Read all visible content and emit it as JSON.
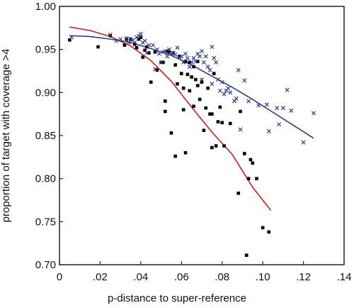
{
  "chart_data": {
    "type": "scatter",
    "title": "",
    "xlabel": "p-distance to super-reference",
    "ylabel": "proportion of target with coverage >4",
    "xlim": [
      0,
      0.14
    ],
    "ylim": [
      0.7,
      1.0
    ],
    "x_ticks": [
      {
        "value": 0,
        "label": "0"
      },
      {
        "value": 0.02,
        "label": ".02"
      },
      {
        "value": 0.04,
        "label": ".04"
      },
      {
        "value": 0.06,
        "label": ".06"
      },
      {
        "value": 0.08,
        "label": ".08"
      },
      {
        "value": 0.1,
        "label": ".10"
      },
      {
        "value": 0.12,
        "label": ".12"
      },
      {
        "value": 0.14,
        "label": ".14"
      }
    ],
    "y_ticks": [
      {
        "value": 0.7,
        "label": "0.70"
      },
      {
        "value": 0.75,
        "label": "0.75"
      },
      {
        "value": 0.8,
        "label": "0.80"
      },
      {
        "value": 0.85,
        "label": "0.85"
      },
      {
        "value": 0.9,
        "label": "0.90"
      },
      {
        "value": 0.95,
        "label": "0.95"
      },
      {
        "value": 1.0,
        "label": "1.00"
      }
    ],
    "grid": false,
    "legend": "none",
    "series": [
      {
        "marker": "square",
        "color": "#000000",
        "points": [
          [
            0.005,
            0.961
          ],
          [
            0.019,
            0.953
          ],
          [
            0.025,
            0.966
          ],
          [
            0.032,
            0.955
          ],
          [
            0.033,
            0.962
          ],
          [
            0.035,
            0.962
          ],
          [
            0.037,
            0.956
          ],
          [
            0.038,
            0.952
          ],
          [
            0.039,
            0.962
          ],
          [
            0.04,
            0.964
          ],
          [
            0.041,
            0.941
          ],
          [
            0.042,
            0.949
          ],
          [
            0.043,
            0.953
          ],
          [
            0.044,
            0.946
          ],
          [
            0.045,
            0.912
          ],
          [
            0.047,
            0.947
          ],
          [
            0.048,
            0.926
          ],
          [
            0.05,
            0.935
          ],
          [
            0.051,
            0.935
          ],
          [
            0.052,
            0.89
          ],
          [
            0.052,
            0.878
          ],
          [
            0.053,
            0.948
          ],
          [
            0.054,
            0.947
          ],
          [
            0.055,
            0.853
          ],
          [
            0.056,
            0.946
          ],
          [
            0.057,
            0.932
          ],
          [
            0.057,
            0.826
          ],
          [
            0.058,
            0.91
          ],
          [
            0.059,
            0.942
          ],
          [
            0.06,
            0.922
          ],
          [
            0.061,
            0.905
          ],
          [
            0.061,
            0.88
          ],
          [
            0.062,
            0.936
          ],
          [
            0.062,
            0.83
          ],
          [
            0.063,
            0.921
          ],
          [
            0.064,
            0.935
          ],
          [
            0.064,
            0.902
          ],
          [
            0.065,
            0.918
          ],
          [
            0.066,
            0.93
          ],
          [
            0.066,
            0.884
          ],
          [
            0.067,
            0.915
          ],
          [
            0.068,
            0.936
          ],
          [
            0.068,
            0.908
          ],
          [
            0.069,
            0.892
          ],
          [
            0.07,
            0.912
          ],
          [
            0.071,
            0.856
          ],
          [
            0.072,
            0.882
          ],
          [
            0.073,
            0.905
          ],
          [
            0.074,
            0.875
          ],
          [
            0.075,
            0.836
          ],
          [
            0.075,
            0.875
          ],
          [
            0.076,
            0.922
          ],
          [
            0.077,
            0.838
          ],
          [
            0.078,
            0.866
          ],
          [
            0.079,
            0.883
          ],
          [
            0.08,
            0.865
          ],
          [
            0.081,
            0.838
          ],
          [
            0.084,
            0.864
          ],
          [
            0.088,
            0.783
          ],
          [
            0.089,
            0.878
          ],
          [
            0.091,
            0.829
          ],
          [
            0.092,
            0.711
          ],
          [
            0.093,
            0.8
          ],
          [
            0.094,
            0.822
          ],
          [
            0.095,
            0.818
          ],
          [
            0.097,
            0.8
          ],
          [
            0.1,
            0.743
          ],
          [
            0.103,
            0.738
          ]
        ]
      },
      {
        "marker": "cross",
        "color": "#2c3a8c",
        "points": [
          [
            0.006,
            0.964
          ],
          [
            0.025,
            0.967
          ],
          [
            0.028,
            0.96
          ],
          [
            0.03,
            0.962
          ],
          [
            0.033,
            0.963
          ],
          [
            0.034,
            0.958
          ],
          [
            0.035,
            0.962
          ],
          [
            0.036,
            0.961
          ],
          [
            0.037,
            0.958
          ],
          [
            0.038,
            0.964
          ],
          [
            0.039,
            0.966
          ],
          [
            0.04,
            0.968
          ],
          [
            0.041,
            0.958
          ],
          [
            0.042,
            0.96
          ],
          [
            0.043,
            0.946
          ],
          [
            0.044,
            0.955
          ],
          [
            0.046,
            0.955
          ],
          [
            0.047,
            0.927
          ],
          [
            0.048,
            0.95
          ],
          [
            0.049,
            0.945
          ],
          [
            0.05,
            0.935
          ],
          [
            0.051,
            0.947
          ],
          [
            0.052,
            0.948
          ],
          [
            0.053,
            0.942
          ],
          [
            0.054,
            0.95
          ],
          [
            0.055,
            0.945
          ],
          [
            0.056,
            0.946
          ],
          [
            0.057,
            0.944
          ],
          [
            0.058,
            0.952
          ],
          [
            0.059,
            0.941
          ],
          [
            0.06,
            0.942
          ],
          [
            0.061,
            0.935
          ],
          [
            0.062,
            0.945
          ],
          [
            0.063,
            0.94
          ],
          [
            0.064,
            0.93
          ],
          [
            0.065,
            0.935
          ],
          [
            0.066,
            0.94
          ],
          [
            0.067,
            0.936
          ],
          [
            0.068,
            0.945
          ],
          [
            0.069,
            0.942
          ],
          [
            0.07,
            0.948
          ],
          [
            0.07,
            0.915
          ],
          [
            0.071,
            0.935
          ],
          [
            0.072,
            0.942
          ],
          [
            0.073,
            0.93
          ],
          [
            0.074,
            0.926
          ],
          [
            0.075,
            0.953
          ],
          [
            0.075,
            0.91
          ],
          [
            0.076,
            0.94
          ],
          [
            0.077,
            0.935
          ],
          [
            0.078,
            0.915
          ],
          [
            0.079,
            0.902
          ],
          [
            0.08,
            0.912
          ],
          [
            0.081,
            0.898
          ],
          [
            0.082,
            0.902
          ],
          [
            0.083,
            0.905
          ],
          [
            0.084,
            0.9
          ],
          [
            0.086,
            0.89
          ],
          [
            0.087,
            0.893
          ],
          [
            0.088,
            0.926
          ],
          [
            0.089,
            0.857
          ],
          [
            0.091,
            0.914
          ],
          [
            0.093,
            0.89
          ],
          [
            0.098,
            0.885
          ],
          [
            0.102,
            0.886
          ],
          [
            0.103,
            0.855
          ],
          [
            0.107,
            0.882
          ],
          [
            0.108,
            0.863
          ],
          [
            0.11,
            0.882
          ],
          [
            0.112,
            0.903
          ],
          [
            0.114,
            0.879
          ],
          [
            0.12,
            0.842
          ],
          [
            0.125,
            0.876
          ]
        ]
      }
    ],
    "trend_lines": [
      {
        "color": "#d11a1a",
        "x": [
          0.005,
          0.015,
          0.025,
          0.035,
          0.045,
          0.055,
          0.065,
          0.075,
          0.085,
          0.095,
          0.104
        ],
        "y": [
          0.976,
          0.972,
          0.965,
          0.954,
          0.937,
          0.913,
          0.883,
          0.854,
          0.828,
          0.79,
          0.763
        ]
      },
      {
        "color": "#2c3a8c",
        "x": [
          0.005,
          0.015,
          0.025,
          0.035,
          0.045,
          0.055,
          0.065,
          0.075,
          0.085,
          0.095,
          0.105,
          0.115,
          0.125
        ],
        "y": [
          0.966,
          0.965,
          0.962,
          0.958,
          0.951,
          0.943,
          0.932,
          0.919,
          0.906,
          0.892,
          0.877,
          0.862,
          0.847
        ]
      }
    ]
  }
}
